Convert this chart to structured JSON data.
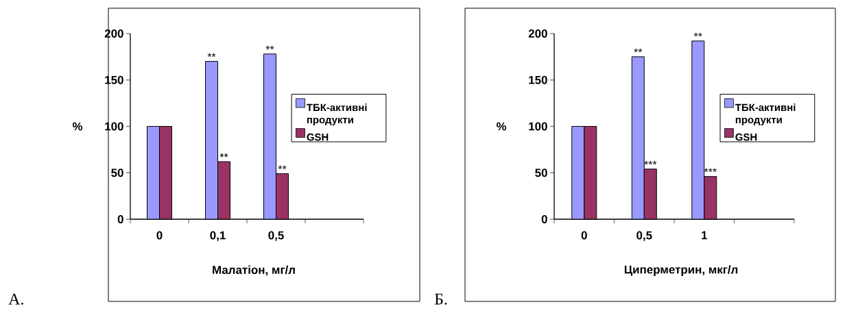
{
  "chart_data": [
    {
      "type": "bar",
      "xlabel": "Малатіон, мг/л",
      "ylabel": "%",
      "categories": [
        "0",
        "0,1",
        "0,5",
        null
      ],
      "series": [
        {
          "name": "ТБК-активні продукти",
          "color": "#9999ff",
          "values": [
            100,
            170,
            178,
            null
          ]
        },
        {
          "name": "GSH",
          "color": "#993366",
          "values": [
            100,
            62,
            49,
            null
          ]
        }
      ],
      "ylim": [
        0,
        200
      ],
      "yticks": [
        0,
        50,
        100,
        150,
        200
      ],
      "legend": "right",
      "annotations": [
        "А.",
        {
          "text": "**",
          "x": "0,1",
          "y": 170
        },
        {
          "text": "**",
          "x": "0,5",
          "y": 178
        },
        {
          "text": "**",
          "x": "0,1",
          "y": 62
        },
        {
          "text": "**",
          "x": "0,5",
          "y": 49
        }
      ]
    },
    {
      "type": "bar",
      "xlabel": "Циперметрин, мкг/л",
      "ylabel": "%",
      "categories": [
        "0",
        "0,5",
        "1",
        null
      ],
      "series": [
        {
          "name": "ТБК-активні продукти",
          "color": "#9999ff",
          "values": [
            100,
            175,
            192,
            null
          ]
        },
        {
          "name": "GSH",
          "color": "#993366",
          "values": [
            100,
            54,
            46,
            null
          ]
        }
      ],
      "ylim": [
        0,
        200
      ],
      "yticks": [
        0,
        50,
        100,
        150,
        200
      ],
      "legend": "right",
      "annotations": [
        "Б.",
        {
          "text": "**",
          "x": "0,5",
          "y": 175
        },
        {
          "text": "**",
          "x": "1",
          "y": 192
        },
        {
          "text": "***",
          "x": "0,5",
          "y": 54
        },
        {
          "text": "***",
          "x": "1",
          "y": 46
        }
      ]
    }
  ]
}
